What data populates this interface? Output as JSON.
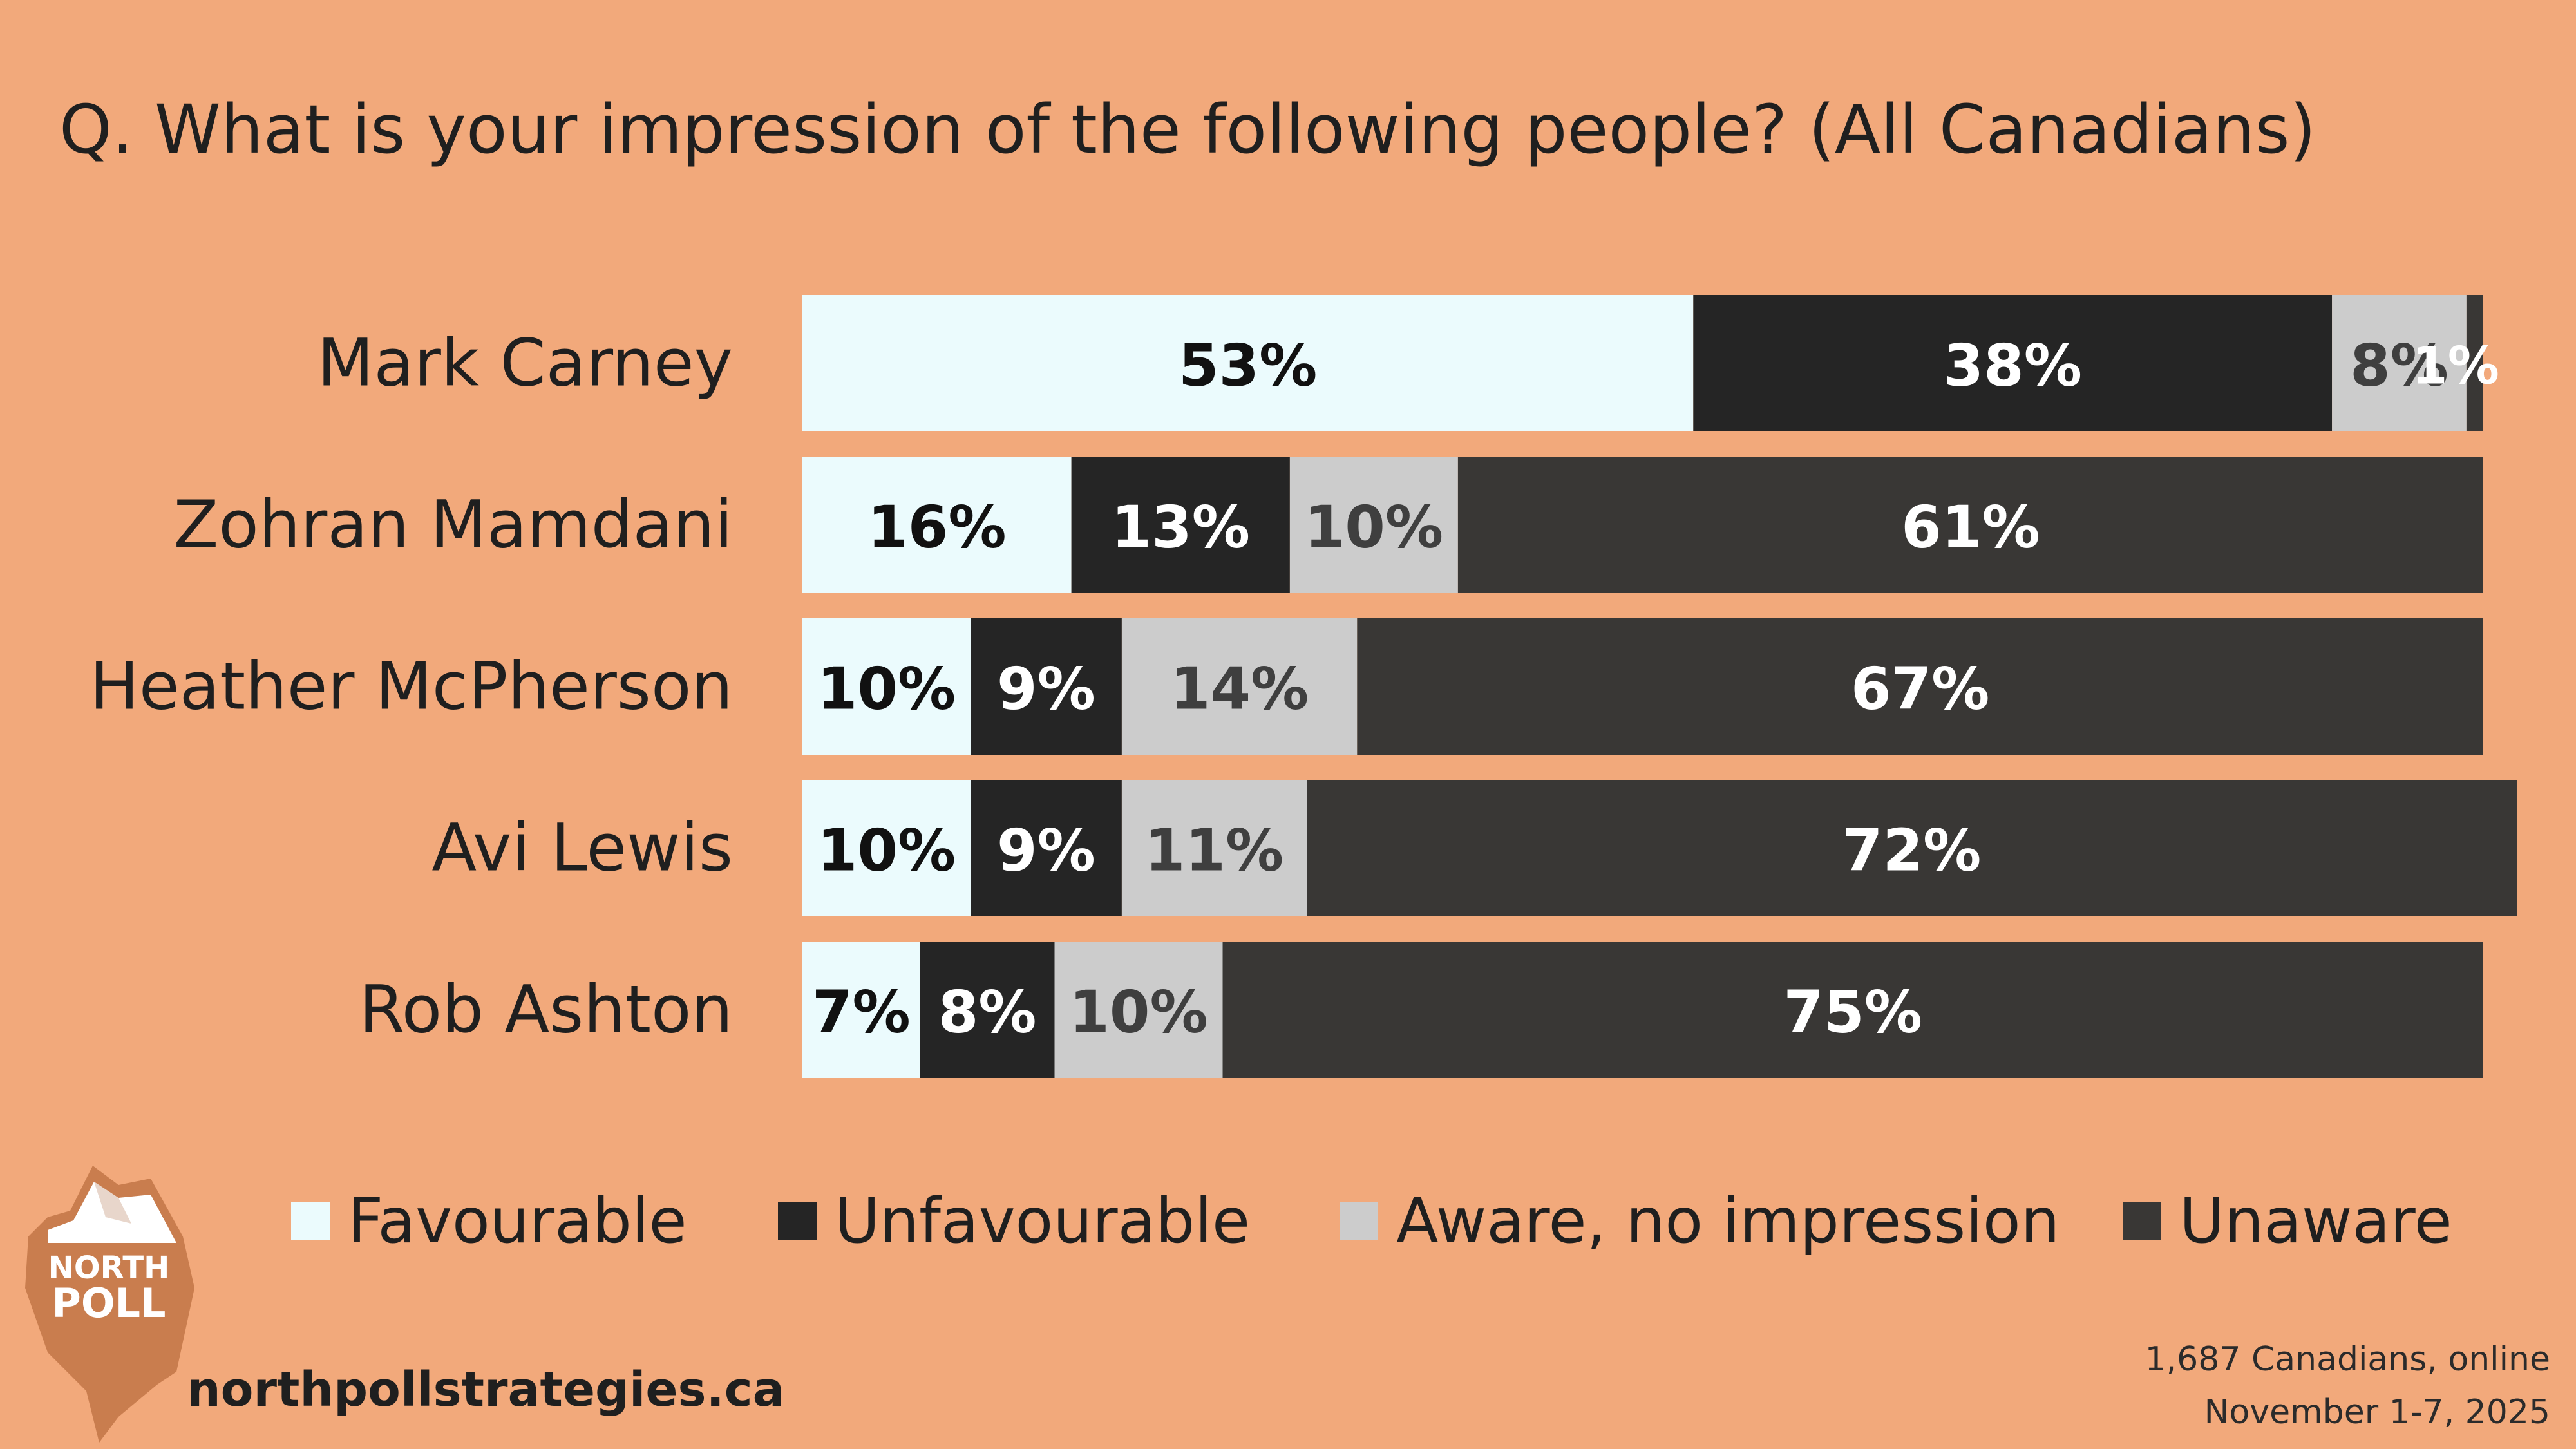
{
  "title": "Q. What is your impression of the following people? (All Canadians)",
  "colors": {
    "background": "#f2a97b",
    "favourable": "#ebfbfd",
    "unfavourable": "#252525",
    "aware_no_impression": "#cccccc",
    "unaware": "#393735",
    "label_dark": "#111111",
    "label_light": "#ffffff",
    "label_grey": "#3f3f3f"
  },
  "chart_data": {
    "type": "bar",
    "orientation": "horizontal",
    "stacked": true,
    "categories": [
      "Mark Carney",
      "Zohran Mamdani",
      "Heather McPherson",
      "Avi Lewis",
      "Rob Ashton"
    ],
    "series": [
      {
        "name": "Favourable",
        "values": [
          53,
          16,
          10,
          10,
          7
        ],
        "labels": [
          "53%",
          "16%",
          "10%",
          "10%",
          "7%"
        ]
      },
      {
        "name": "Unfavourable",
        "values": [
          38,
          13,
          9,
          9,
          8
        ],
        "labels": [
          "38%",
          "13%",
          "9%",
          "9%",
          "8%"
        ]
      },
      {
        "name": "Aware, no impression",
        "values": [
          8,
          10,
          14,
          11,
          10
        ],
        "labels": [
          "8%",
          "10%",
          "14%",
          "11%",
          "10%"
        ]
      },
      {
        "name": "Unaware",
        "values": [
          1,
          61,
          67,
          72,
          75
        ],
        "labels": [
          "1%",
          "61%",
          "67%",
          "72%",
          "75%"
        ]
      }
    ],
    "xlim": [
      0,
      100
    ],
    "legend_position": "bottom"
  },
  "logo": {
    "line1": "NORTH",
    "line2": "POLL"
  },
  "website": "northpollstrategies.ca",
  "source": {
    "line1": "1,687 Canadians, online",
    "line2": "November 1-7, 2025"
  }
}
